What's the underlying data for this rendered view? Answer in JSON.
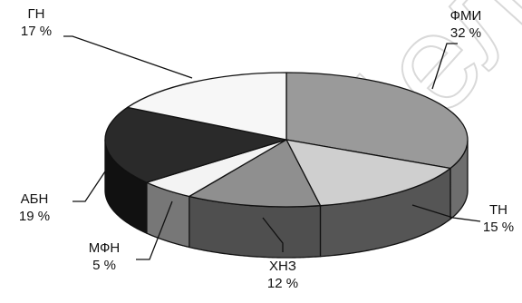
{
  "chart_data": {
    "type": "pie",
    "style": "3d-exploded-none",
    "slices": [
      {
        "label": "ФМИ",
        "value": 32,
        "value_text": "32 %",
        "color": "#9a9a9a",
        "side_color": "#6e6e6e"
      },
      {
        "label": "ТН",
        "value": 15,
        "value_text": "15 %",
        "color": "#cfcfcf",
        "side_color": "#555555"
      },
      {
        "label": "ХНЗ",
        "value": 12,
        "value_text": "12 %",
        "color": "#8f8f8f",
        "side_color": "#4f4f4f"
      },
      {
        "label": "МФН",
        "value": 5,
        "value_text": "5 %",
        "color": "#f3f3f3",
        "side_color": "#777777"
      },
      {
        "label": "АБН",
        "value": 19,
        "value_text": "19 %",
        "color": "#2a2a2a",
        "side_color": "#111111"
      },
      {
        "label": "ГН",
        "value": 17,
        "value_text": "17 %",
        "color": "#f7f7f7",
        "side_color": "#cfcfcf"
      }
    ],
    "start_angle_deg": -90,
    "direction": "clockwise",
    "legend": "none",
    "labels_position": "outside-with-leader-lines"
  },
  "watermark": {
    "text": "Бел",
    "color": "#d9d9d9"
  }
}
